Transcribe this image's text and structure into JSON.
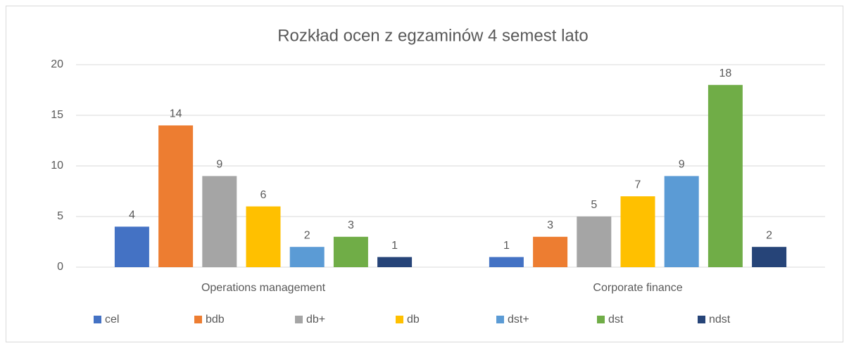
{
  "chart_data": {
    "type": "bar",
    "title": "Rozkład ocen z egzaminów 4 semest lato",
    "categories": [
      "Operations management",
      "Corporate finance"
    ],
    "series": [
      {
        "name": "cel",
        "color": "#4472c4",
        "values": [
          4,
          1
        ]
      },
      {
        "name": "bdb",
        "color": "#ed7d31",
        "values": [
          14,
          3
        ]
      },
      {
        "name": "db+",
        "color": "#a5a5a5",
        "values": [
          9,
          5
        ]
      },
      {
        "name": "db",
        "color": "#ffc000",
        "values": [
          6,
          7
        ]
      },
      {
        "name": "dst+",
        "color": "#5b9bd5",
        "values": [
          2,
          9
        ]
      },
      {
        "name": "dst",
        "color": "#70ad47",
        "values": [
          3,
          18
        ]
      },
      {
        "name": "ndst",
        "color": "#264478",
        "values": [
          1,
          2
        ]
      }
    ],
    "ylim": [
      0,
      20
    ],
    "yticks": [
      0,
      5,
      10,
      15,
      20
    ],
    "grid": true,
    "legend": "bottom"
  }
}
